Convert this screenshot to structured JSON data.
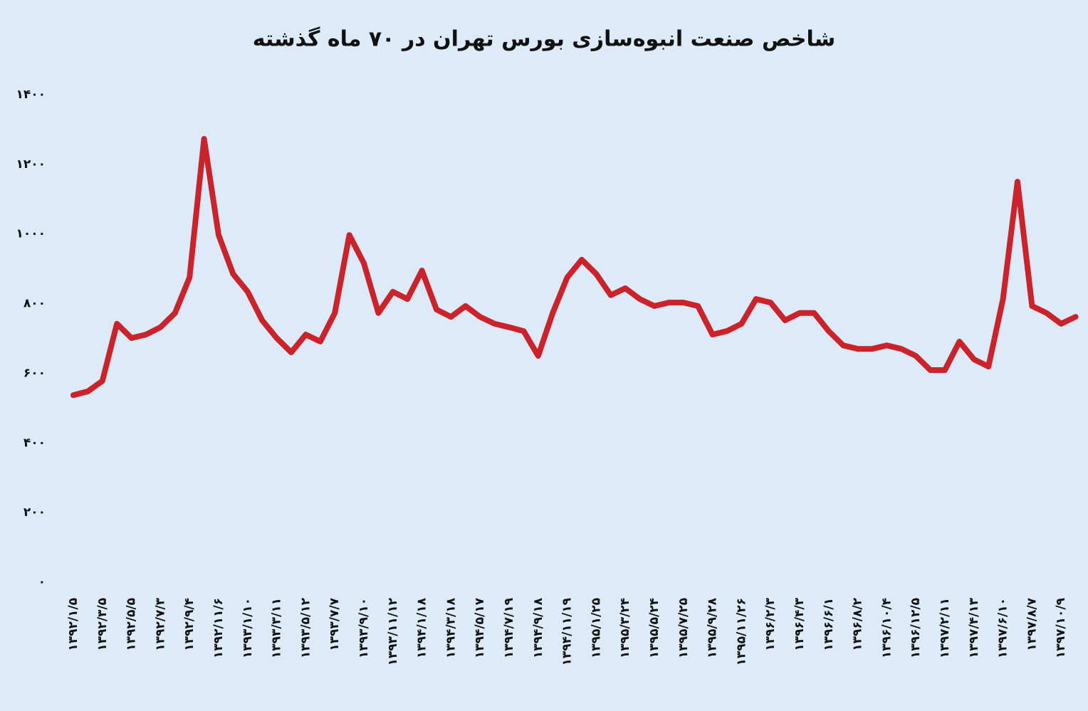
{
  "chart_data": {
    "type": "line",
    "title": "شاخص صنعت انبوه‌سازی بورس تهران در ۷۰ ماه گذشته",
    "categories": [
      "۱۳۹۲/۱/۵",
      null,
      "۱۳۹۲/۳/۵",
      null,
      "۱۳۹۲/۵/۵",
      null,
      "۱۳۹۲/۷/۳",
      null,
      "۱۳۹۲/۹/۴",
      null,
      "۱۳۹۲/۱۱/۶",
      null,
      "۱۳۹۳/۱/۱۰",
      null,
      "۱۳۹۳/۳/۱۱",
      null,
      "۱۳۹۳/۵/۱۲",
      null,
      "۱۳۹۳/۷/۷",
      null,
      "۱۳۹۳/۹/۱۰",
      null,
      "۱۳۹۳/۱۱/۱۲",
      null,
      "۱۳۹۴/۱/۱۸",
      null,
      "۱۳۹۴/۳/۱۸",
      null,
      "۱۳۹۴/۵/۱۷",
      null,
      "۱۳۹۴/۷/۱۹",
      null,
      "۱۳۹۴/۹/۱۸",
      null,
      "۱۳۹۴/۱۱/۱۹",
      null,
      "۱۳۹۵/۱/۲۵",
      null,
      "۱۳۹۵/۳/۲۴",
      null,
      "۱۳۹۵/۵/۲۴",
      null,
      "۱۳۹۵/۷/۲۵",
      null,
      "۱۳۹۵/۹/۲۸",
      null,
      "۱۳۹۵/۱۱/۲۶",
      null,
      "۱۳۹۶/۲/۳",
      null,
      "۱۳۹۶/۴/۳",
      null,
      "۱۳۹۶/۶/۱",
      null,
      "۱۳۹۶/۸/۲",
      null,
      "۱۳۹۶/۱۰/۴",
      null,
      "۱۳۹۶/۱۲/۵",
      null,
      "۱۳۹۷/۲/۱۱",
      null,
      "۱۳۹۷/۴/۱۳",
      null,
      "۱۳۹۷/۶/۱۰",
      null,
      "۱۳۹۷/۸/۷",
      null,
      "۱۳۹۷/۱۰/۹",
      null
    ],
    "values": [
      537,
      548,
      578,
      742,
      701,
      711,
      732,
      773,
      875,
      1273,
      997,
      885,
      834,
      752,
      701,
      660,
      711,
      691,
      773,
      997,
      916,
      773,
      834,
      813,
      895,
      783,
      762,
      793,
      762,
      742,
      732,
      721,
      650,
      773,
      875,
      926,
      885,
      824,
      844,
      813,
      793,
      803,
      803,
      793,
      711,
      721,
      742,
      813,
      803,
      752,
      773,
      773,
      721,
      680,
      670,
      670,
      680,
      670,
      650,
      609,
      609,
      691,
      640,
      619,
      813,
      1150,
      793,
      773,
      742,
      762
    ],
    "color": "#cc2229",
    "ylim": [
      0,
      1400
    ],
    "yticks": [
      {
        "value": 0,
        "label": "۰"
      },
      {
        "value": 200,
        "label": "۲۰۰"
      },
      {
        "value": 400,
        "label": "۴۰۰"
      },
      {
        "value": 600,
        "label": "۶۰۰"
      },
      {
        "value": 800,
        "label": "۸۰۰"
      },
      {
        "value": 1000,
        "label": "۱۰۰۰"
      },
      {
        "value": 1200,
        "label": "۱۲۰۰"
      },
      {
        "value": 1400,
        "label": "۱۴۰۰"
      }
    ],
    "grid": false
  }
}
